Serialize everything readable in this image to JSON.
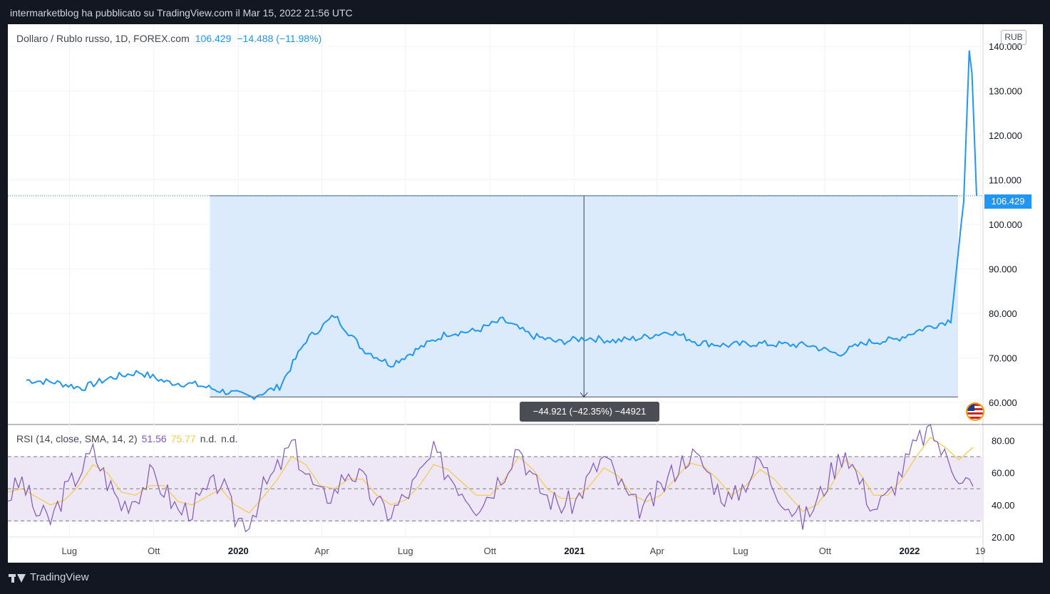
{
  "header": {
    "published_text": "intermarketblog ha pubblicato su TradingView.com il Mar 15, 2022 21:56 UTC"
  },
  "legend": {
    "symbol_text": "Dollaro / Rublo russo, 1D, FOREX.com",
    "last_value": "106.429",
    "change_text": "−14.488 (−11.98%)"
  },
  "rsi_legend": {
    "label": "RSI (14, close, SMA, 14, 2)",
    "rsi_value": "51.56",
    "sma_value": "75.77",
    "na1": "n.d.",
    "na2": "n.d."
  },
  "price_axis": {
    "currency": "RUB",
    "current_price_label": "106.429"
  },
  "measure": {
    "label": "−44.921 (−42.35%) −44921"
  },
  "footer": {
    "brand": "TradingView"
  },
  "colors": {
    "price_line": "#2196f3",
    "measure_fill": "#dcebfb",
    "rsi_line": "#7e57c2",
    "rsi_sma": "#f7c948",
    "rsi_band": "#ede7f6"
  },
  "chart_data": [
    {
      "type": "line",
      "series": [
        {
          "name": "Dollaro / Rublo russo",
          "x": [
            "2019-05",
            "2019-06",
            "2019-07",
            "2019-08",
            "2019-09",
            "2019-10",
            "2019-11",
            "2019-12",
            "2020-01",
            "2020-02",
            "2020-03",
            "2020-04",
            "2020-05",
            "2020-06",
            "2020-07",
            "2020-08",
            "2020-09",
            "2020-10",
            "2020-11",
            "2020-12",
            "2021-01",
            "2021-02",
            "2021-03",
            "2021-04",
            "2021-05",
            "2021-06",
            "2021-07",
            "2021-08",
            "2021-09",
            "2021-10",
            "2021-11",
            "2021-12",
            "2022-01",
            "2022-02",
            "2022-03-01",
            "2022-03-07",
            "2022-03-10",
            "2022-03-15"
          ],
          "values": [
            65.0,
            64.5,
            63.2,
            65.5,
            66.8,
            64.5,
            64.0,
            62.5,
            61.2,
            63.5,
            74.0,
            79.5,
            72.0,
            68.5,
            72.0,
            75.5,
            76.0,
            78.5,
            75.0,
            73.5,
            74.5,
            73.8,
            74.5,
            76.0,
            73.5,
            72.8,
            73.2,
            73.0,
            72.8,
            70.8,
            73.5,
            74.0,
            76.5,
            78.5,
            105.0,
            139.0,
            134.0,
            106.429
          ]
        }
      ],
      "ylim": [
        55,
        145
      ],
      "y_ticks": [
        "140.000",
        "130.000",
        "120.000",
        "110.000",
        "100.000",
        "90.000",
        "80.000",
        "70.000",
        "60.000"
      ],
      "x_tick_labels": [
        "Lug",
        "Ott",
        "2020",
        "Apr",
        "Lug",
        "Ott",
        "2021",
        "Apr",
        "Lug",
        "Ott",
        "2022",
        "19"
      ],
      "measurement": {
        "from": "2019-12",
        "to": "2022-03-15",
        "from_value": 61.2,
        "to_value": 106.429
      },
      "grid": true
    },
    {
      "type": "line",
      "series": [
        {
          "name": "RSI",
          "values": [
            45,
            55,
            35,
            30,
            48,
            60,
            73,
            55,
            40,
            45,
            58,
            50,
            36,
            38,
            48,
            55,
            32,
            30,
            50,
            62,
            78,
            60,
            45,
            48,
            62,
            55,
            40,
            35,
            45,
            58,
            72,
            60,
            50,
            40,
            48,
            62,
            78,
            55,
            45,
            40,
            42,
            58,
            70,
            55,
            40,
            38,
            50,
            62,
            72,
            65,
            50,
            42,
            55,
            68,
            52,
            40,
            30,
            42,
            60,
            75,
            55,
            38,
            45,
            62,
            78,
            88,
            70,
            60,
            51.56
          ]
        },
        {
          "name": "SMA",
          "values": [
            48,
            50,
            45,
            40,
            43,
            52,
            65,
            60,
            48,
            46,
            52,
            52,
            42,
            40,
            45,
            50,
            40,
            35,
            45,
            56,
            70,
            65,
            52,
            50,
            56,
            56,
            46,
            40,
            43,
            52,
            65,
            62,
            54,
            46,
            46,
            56,
            70,
            62,
            50,
            44,
            44,
            52,
            63,
            58,
            46,
            42,
            46,
            56,
            66,
            64,
            56,
            46,
            52,
            62,
            56,
            46,
            36,
            40,
            52,
            68,
            60,
            46,
            46,
            56,
            70,
            82,
            76,
            68,
            75.77
          ]
        }
      ],
      "ylim": [
        20,
        90
      ],
      "y_ticks": [
        "80.00",
        "60.00",
        "40.00",
        "20.00"
      ],
      "bands": [
        30,
        70
      ]
    }
  ]
}
